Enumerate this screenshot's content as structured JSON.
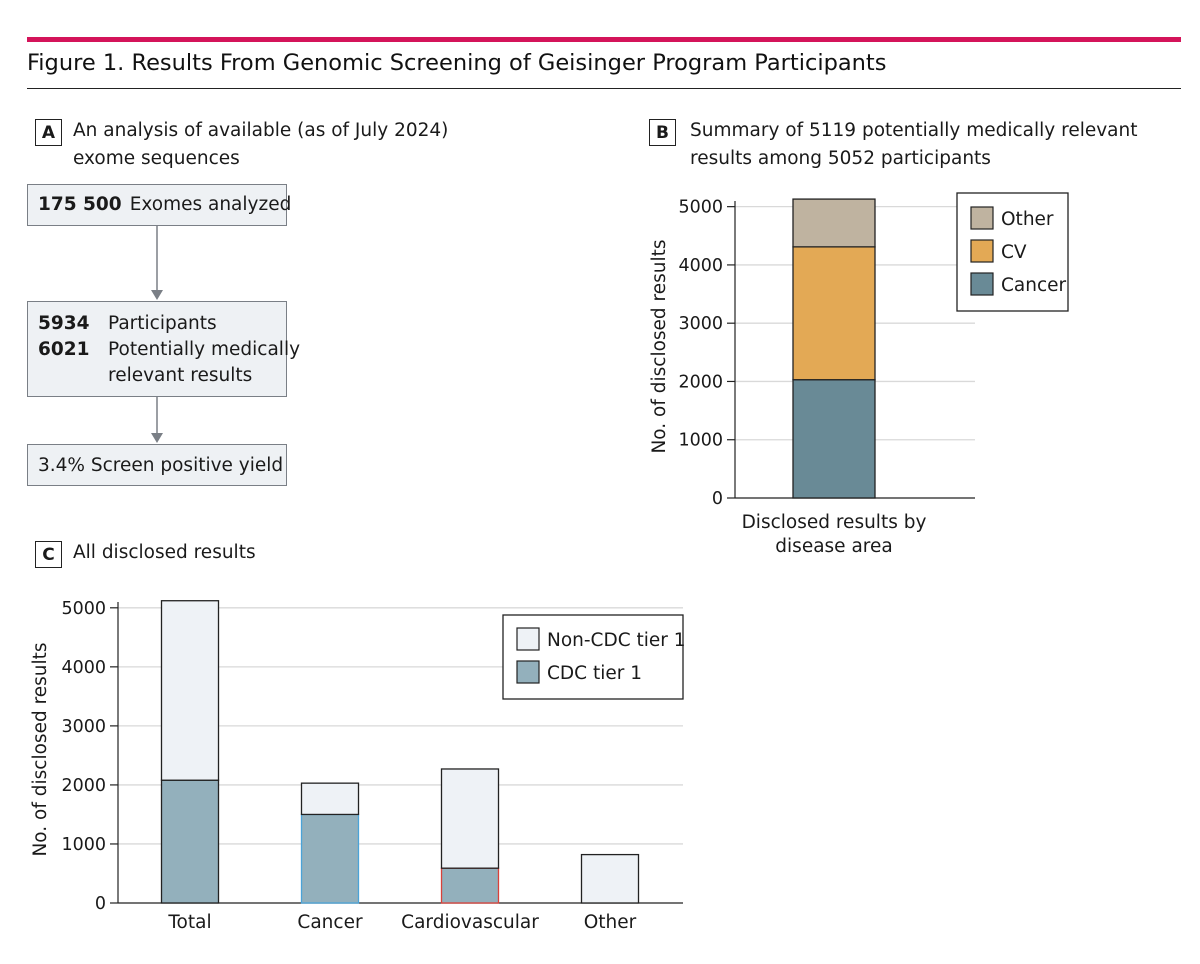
{
  "figure": {
    "title": "Figure 1. Results From Genomic Screening of Geisinger Program Participants",
    "accent_color": "#d4145a"
  },
  "panel_a": {
    "tag": "A",
    "caption": [
      "An analysis of available (as of July 2024)",
      "exome sequences"
    ],
    "box1": {
      "num": "175 500",
      "text": "Exomes analyzed"
    },
    "box2": [
      {
        "num": "5934",
        "text": "Participants"
      },
      {
        "num": "6021",
        "text": "Potentially medically"
      },
      {
        "num": "",
        "text": "relevant results"
      }
    ],
    "box3": {
      "text": "3.4% Screen positive yield"
    }
  },
  "panel_b": {
    "tag": "B",
    "caption": [
      "Summary of 5119 potentially medically relevant",
      "results among 5052 participants"
    ]
  },
  "panel_c": {
    "tag": "C",
    "caption": [
      "All disclosed results"
    ]
  },
  "chart_data": [
    {
      "panel": "B",
      "type": "bar",
      "stacked": true,
      "categories": [
        "Disclosed results by disease area"
      ],
      "category_label_lines": [
        "Disclosed results by",
        "disease area"
      ],
      "series": [
        {
          "name": "Cancer",
          "values": [
            2030
          ],
          "color": "#698a96"
        },
        {
          "name": "CV",
          "values": [
            2280
          ],
          "color": "#e3a955"
        },
        {
          "name": "Other",
          "values": [
            820
          ],
          "color": "#bfb3a0"
        }
      ],
      "legend_order": [
        "Other",
        "CV",
        "Cancer"
      ],
      "ylabel": "No. of disclosed results",
      "yticks": [
        0,
        1000,
        2000,
        3000,
        4000,
        5000
      ],
      "ylim": [
        0,
        5200
      ],
      "grid": true,
      "legend_position": "right"
    },
    {
      "panel": "C",
      "type": "bar",
      "stacked": true,
      "categories": [
        "Total",
        "Cancer",
        "Cardiovascular",
        "Other"
      ],
      "series": [
        {
          "name": "CDC tier 1",
          "values": [
            2080,
            1500,
            590,
            0
          ],
          "color": "#93b0bc"
        },
        {
          "name": "Non-CDC tier 1",
          "values": [
            3040,
            530,
            1680,
            820
          ],
          "color": "#eef2f6"
        }
      ],
      "legend_order": [
        "Non-CDC tier 1",
        "CDC tier 1"
      ],
      "ylabel": "No. of disclosed results",
      "yticks": [
        0,
        1000,
        2000,
        3000,
        4000,
        5000
      ],
      "ylim": [
        0,
        5200
      ],
      "grid": true,
      "legend_position": "top-right"
    }
  ]
}
